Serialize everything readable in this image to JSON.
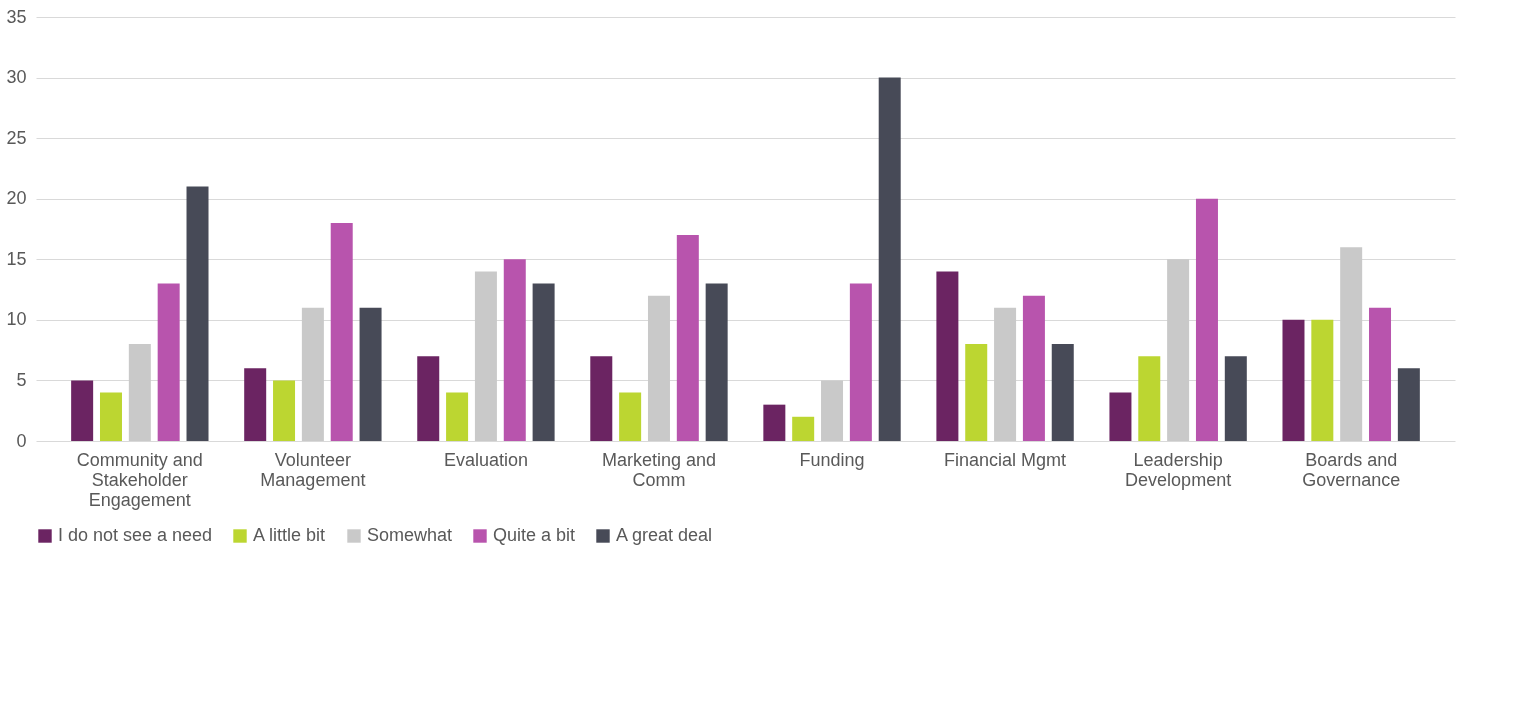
{
  "chart_data": {
    "type": "bar",
    "categories": [
      "Community and Stakeholder Engagement",
      "Volunteer Management",
      "Evaluation",
      "Marketing and Comm",
      "Funding",
      "Financial Mgmt",
      "Leadership Development",
      "Boards and Governance"
    ],
    "series": [
      {
        "name": "I do not see a need",
        "color": "#6b2462",
        "values": [
          5,
          6,
          7,
          7,
          3,
          14,
          4,
          10
        ]
      },
      {
        "name": "A little bit",
        "color": "#bcd631",
        "values": [
          4,
          5,
          4,
          4,
          2,
          8,
          7,
          10
        ]
      },
      {
        "name": "Somewhat",
        "color": "#c9c9c9",
        "values": [
          8,
          11,
          14,
          12,
          5,
          11,
          15,
          16
        ]
      },
      {
        "name": "Quite a bit",
        "color": "#b854ad",
        "values": [
          13,
          18,
          15,
          17,
          13,
          12,
          20,
          11
        ]
      },
      {
        "name": "A  great deal",
        "color": "#474a57",
        "values": [
          21,
          11,
          13,
          13,
          30,
          8,
          7,
          6
        ]
      }
    ],
    "ylim": [
      0,
      35
    ],
    "yticks": [
      0,
      5,
      10,
      15,
      20,
      25,
      30,
      35
    ],
    "grid": "y",
    "legend": "bottom"
  }
}
